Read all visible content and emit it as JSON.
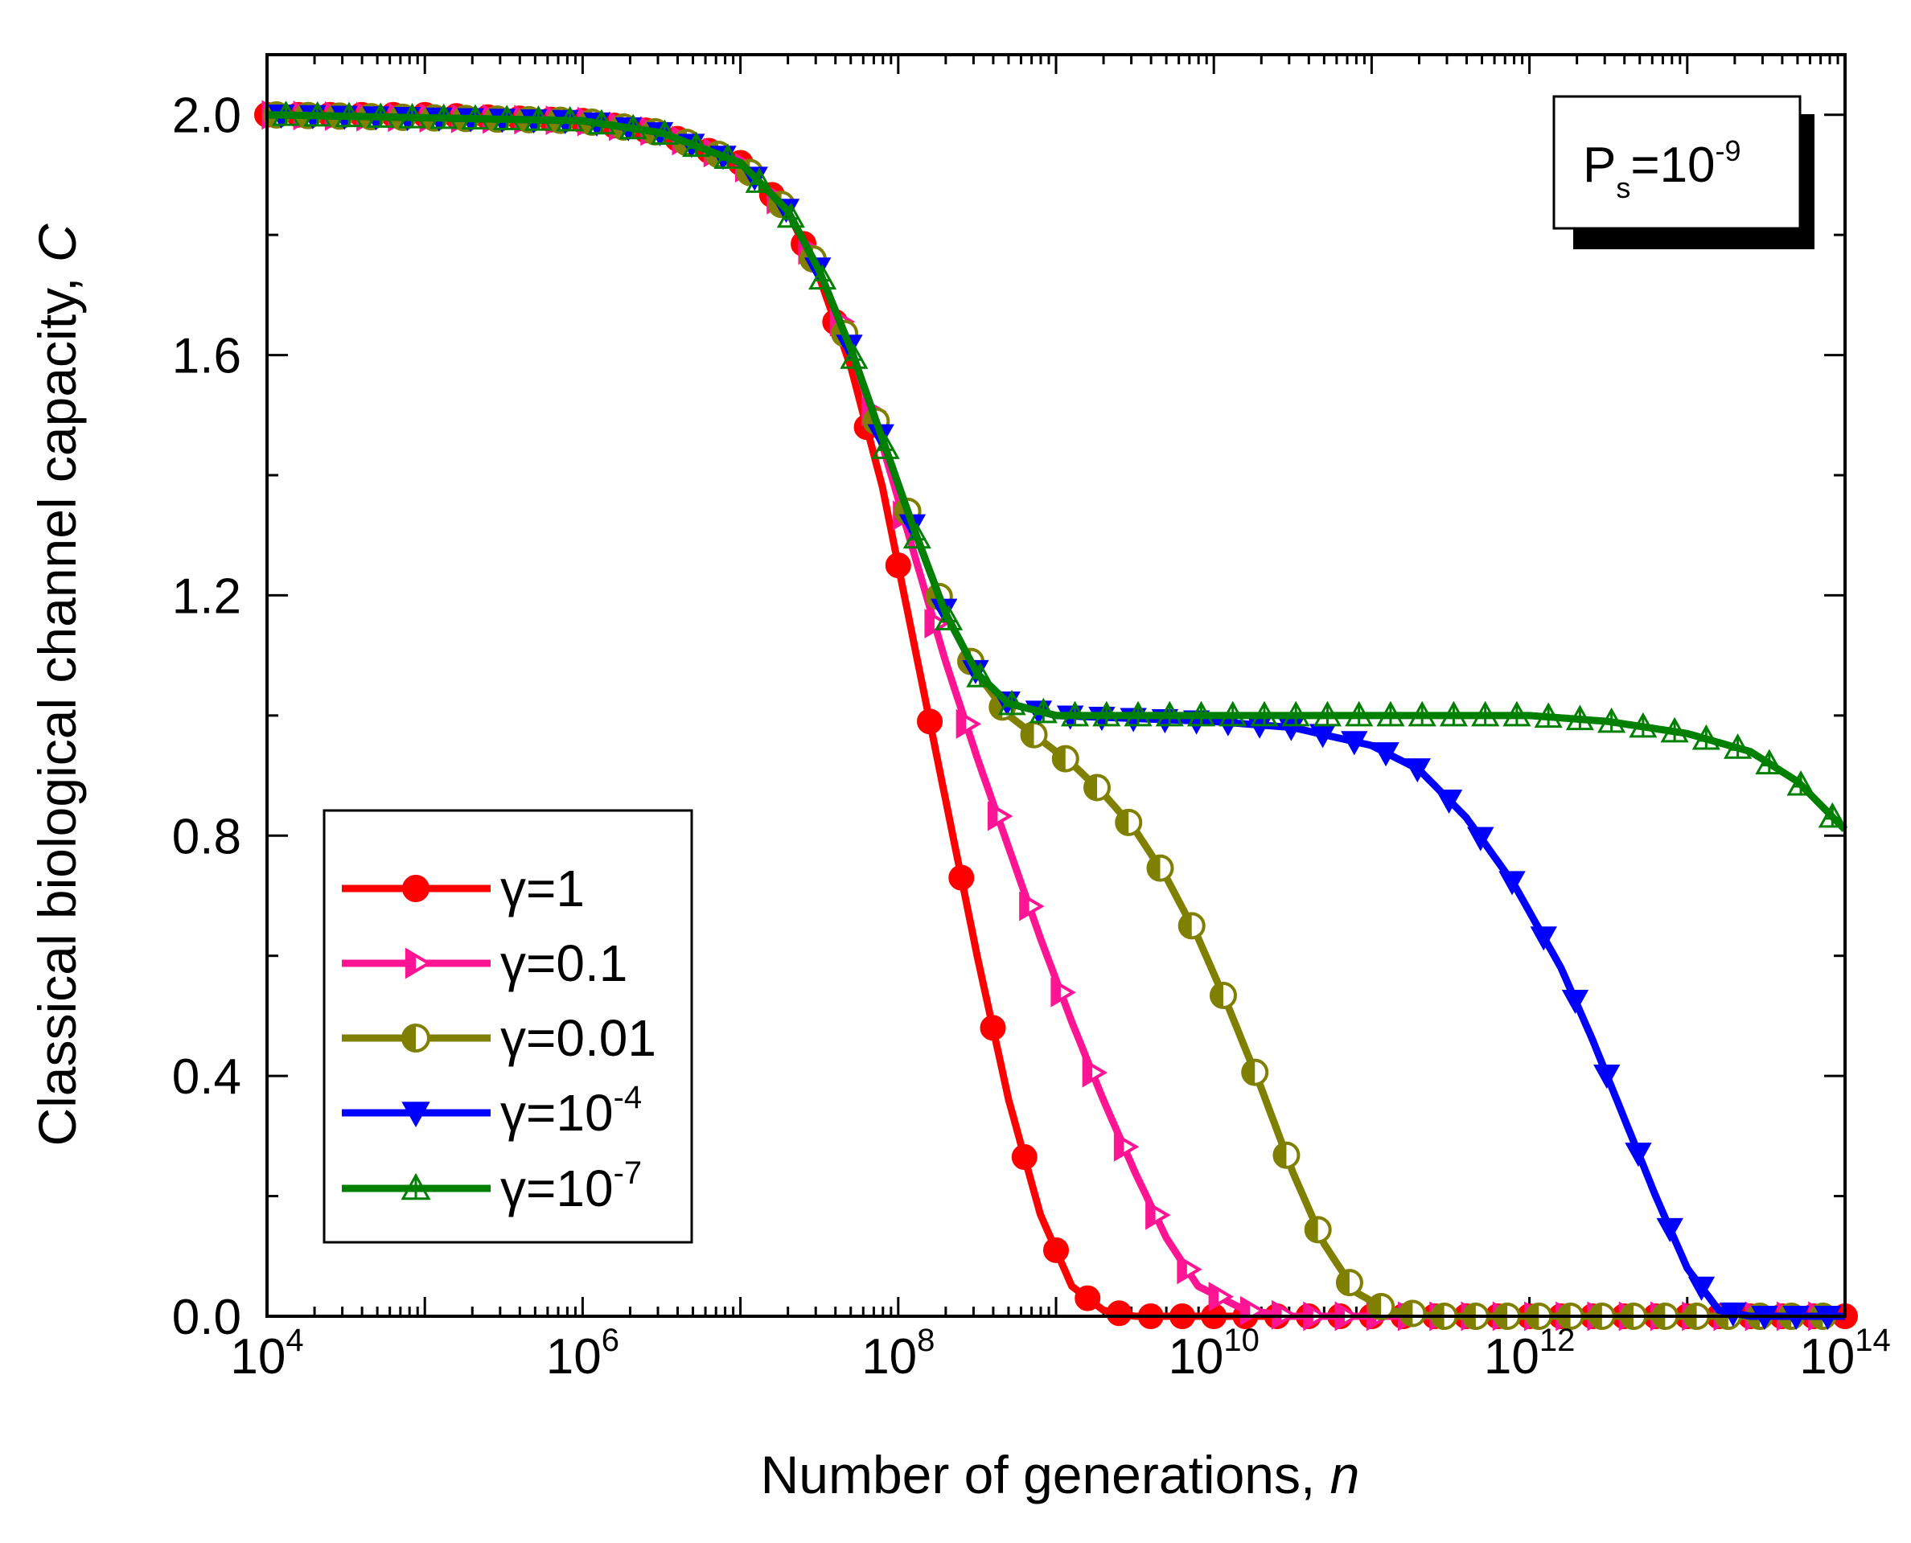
{
  "chart_data": {
    "type": "line",
    "title": "",
    "xlabel": "Number of generations,",
    "xlabel_var": "n",
    "ylabel": "Classical biological channel capacity,",
    "ylabel_var": "C",
    "xscale": "log",
    "xlim": [
      10000,
      100000000000000
    ],
    "ylim": [
      0,
      2.1
    ],
    "x_ticks": [
      {
        "base": "10",
        "exp": "4"
      },
      {
        "base": "10",
        "exp": "6"
      },
      {
        "base": "10",
        "exp": "8"
      },
      {
        "base": "10",
        "exp": "10"
      },
      {
        "base": "10",
        "exp": "12"
      },
      {
        "base": "10",
        "exp": "14"
      }
    ],
    "y_ticks": [
      "0.0",
      "0.4",
      "0.8",
      "1.2",
      "1.6",
      "2.0"
    ],
    "annotation": {
      "main": "P",
      "sub": "s",
      "rest": "=10",
      "sup": "-9"
    },
    "legend_position": "lower-left",
    "series": [
      {
        "name": "γ=1",
        "label_main": "γ=1",
        "label_sup": "",
        "color": "#ff0000",
        "marker": "circle-filled",
        "points": [
          [
            4,
            2.0
          ],
          [
            5,
            2.0
          ],
          [
            6,
            1.99
          ],
          [
            6.5,
            1.97
          ],
          [
            7,
            1.92
          ],
          [
            7.3,
            1.84
          ],
          [
            7.5,
            1.73
          ],
          [
            7.7,
            1.58
          ],
          [
            7.9,
            1.38
          ],
          [
            8.1,
            1.12
          ],
          [
            8.3,
            0.86
          ],
          [
            8.5,
            0.6
          ],
          [
            8.7,
            0.36
          ],
          [
            8.9,
            0.17
          ],
          [
            9.1,
            0.05
          ],
          [
            9.3,
            0.01
          ],
          [
            9.5,
            0.0
          ],
          [
            10,
            0.0
          ],
          [
            14,
            0.0
          ]
        ]
      },
      {
        "name": "γ=0.1",
        "label_main": "γ=0.1",
        "label_sup": "",
        "color": "#ff1493",
        "marker": "triangle-right-half",
        "points": [
          [
            4,
            2.0
          ],
          [
            6,
            1.99
          ],
          [
            6.5,
            1.97
          ],
          [
            7,
            1.92
          ],
          [
            7.3,
            1.84
          ],
          [
            7.5,
            1.74
          ],
          [
            7.7,
            1.61
          ],
          [
            7.9,
            1.45
          ],
          [
            8.1,
            1.27
          ],
          [
            8.3,
            1.09
          ],
          [
            8.5,
            0.93
          ],
          [
            8.7,
            0.78
          ],
          [
            8.9,
            0.63
          ],
          [
            9.1,
            0.49
          ],
          [
            9.3,
            0.36
          ],
          [
            9.5,
            0.24
          ],
          [
            9.7,
            0.13
          ],
          [
            9.9,
            0.05
          ],
          [
            10.2,
            0.01
          ],
          [
            10.5,
            0.0
          ],
          [
            14,
            0.0
          ]
        ]
      },
      {
        "name": "γ=0.01",
        "label_main": "γ=0.01",
        "label_sup": "",
        "color": "#808000",
        "marker": "circle-half",
        "points": [
          [
            4,
            2.0
          ],
          [
            6,
            1.99
          ],
          [
            6.5,
            1.97
          ],
          [
            7,
            1.92
          ],
          [
            7.3,
            1.84
          ],
          [
            7.5,
            1.74
          ],
          [
            7.7,
            1.61
          ],
          [
            7.9,
            1.46
          ],
          [
            8.1,
            1.31
          ],
          [
            8.3,
            1.17
          ],
          [
            8.5,
            1.07
          ],
          [
            8.7,
            1.0
          ],
          [
            8.9,
            0.96
          ],
          [
            9.1,
            0.92
          ],
          [
            9.3,
            0.87
          ],
          [
            9.5,
            0.81
          ],
          [
            9.7,
            0.73
          ],
          [
            9.9,
            0.63
          ],
          [
            10.1,
            0.51
          ],
          [
            10.3,
            0.38
          ],
          [
            10.5,
            0.24
          ],
          [
            10.7,
            0.12
          ],
          [
            10.9,
            0.04
          ],
          [
            11.1,
            0.01
          ],
          [
            11.4,
            0.0
          ],
          [
            14,
            0.0
          ]
        ]
      },
      {
        "name": "γ=10-4",
        "label_main": "γ=10",
        "label_sup": "-4",
        "color": "#0000ff",
        "marker": "triangle-down-filled",
        "points": [
          [
            4,
            2.0
          ],
          [
            6,
            1.99
          ],
          [
            6.5,
            1.97
          ],
          [
            7,
            1.92
          ],
          [
            7.3,
            1.84
          ],
          [
            7.5,
            1.74
          ],
          [
            7.7,
            1.61
          ],
          [
            7.9,
            1.46
          ],
          [
            8.1,
            1.31
          ],
          [
            8.3,
            1.17
          ],
          [
            8.5,
            1.07
          ],
          [
            8.7,
            1.02
          ],
          [
            9,
            1.0
          ],
          [
            10,
            0.99
          ],
          [
            10.5,
            0.98
          ],
          [
            11,
            0.95
          ],
          [
            11.3,
            0.91
          ],
          [
            11.6,
            0.83
          ],
          [
            11.9,
            0.72
          ],
          [
            12.2,
            0.58
          ],
          [
            12.4,
            0.46
          ],
          [
            12.6,
            0.33
          ],
          [
            12.8,
            0.2
          ],
          [
            13,
            0.08
          ],
          [
            13.2,
            0.01
          ],
          [
            13.4,
            0.0
          ],
          [
            14,
            0.0
          ]
        ]
      },
      {
        "name": "γ=10-7",
        "label_main": "γ=10",
        "label_sup": "-7",
        "color": "#008000",
        "marker": "triangle-up-cross",
        "points": [
          [
            4,
            2.0
          ],
          [
            6,
            1.99
          ],
          [
            6.5,
            1.97
          ],
          [
            7,
            1.92
          ],
          [
            7.3,
            1.84
          ],
          [
            7.5,
            1.74
          ],
          [
            7.7,
            1.61
          ],
          [
            7.9,
            1.46
          ],
          [
            8.1,
            1.31
          ],
          [
            8.3,
            1.17
          ],
          [
            8.5,
            1.07
          ],
          [
            8.7,
            1.02
          ],
          [
            9,
            1.0
          ],
          [
            10,
            1.0
          ],
          [
            11,
            1.0
          ],
          [
            12,
            1.0
          ],
          [
            12.5,
            0.99
          ],
          [
            13,
            0.97
          ],
          [
            13.4,
            0.94
          ],
          [
            13.7,
            0.89
          ],
          [
            14,
            0.81
          ]
        ]
      }
    ]
  }
}
